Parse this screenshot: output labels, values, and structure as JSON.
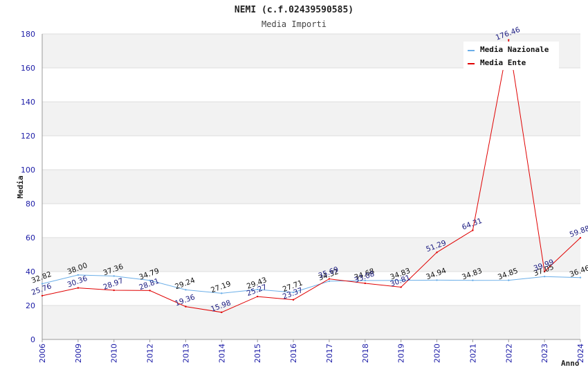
{
  "chart_data": {
    "type": "line",
    "title": "NEMI (c.f.02439590585)",
    "subtitle": "Media Importi",
    "xlabel": "Anno",
    "ylabel": "Media",
    "ylim": [
      0,
      180
    ],
    "yticks": [
      "0",
      "20",
      "40",
      "60",
      "80",
      "100",
      "120",
      "140",
      "160",
      "180"
    ],
    "categories": [
      "2006",
      "2009",
      "2010",
      "2012",
      "2013",
      "2014",
      "2015",
      "2016",
      "2017",
      "2018",
      "2019",
      "2020",
      "2021",
      "2022",
      "2023",
      "2024"
    ],
    "grid": "alternating horizontal bands",
    "legend_position": "top-right",
    "series": [
      {
        "name": "Media Nazionale",
        "color": "#6aaee8",
        "values": [
          32.82,
          38.0,
          37.36,
          34.79,
          29.24,
          27.19,
          29.43,
          27.71,
          34.32,
          34.68,
          34.83,
          34.94,
          34.83,
          34.85,
          37.05,
          36.46
        ],
        "labels": [
          "32.82",
          "38.00",
          "37.36",
          "34.79",
          "29.24",
          "27.19",
          "29.43",
          "27.71",
          "34.32",
          "34.68",
          "34.83",
          "34.94",
          "34.83",
          "34.85",
          "37.05",
          "36.46"
        ]
      },
      {
        "name": "Media Ente",
        "color": "#e00000",
        "values": [
          25.76,
          30.36,
          28.97,
          28.81,
          19.36,
          15.98,
          25.27,
          23.37,
          35.69,
          33.08,
          30.81,
          51.29,
          64.31,
          176.46,
          39.99,
          59.88
        ],
        "labels": [
          "25.76",
          "30.36",
          "28.97",
          "28.81",
          "19.36",
          "15.98",
          "25.27",
          "23.37",
          "35.69",
          "33.08",
          "30.81",
          "51.29",
          "64.31",
          "176.46",
          "39.99",
          "59.88"
        ]
      }
    ]
  }
}
